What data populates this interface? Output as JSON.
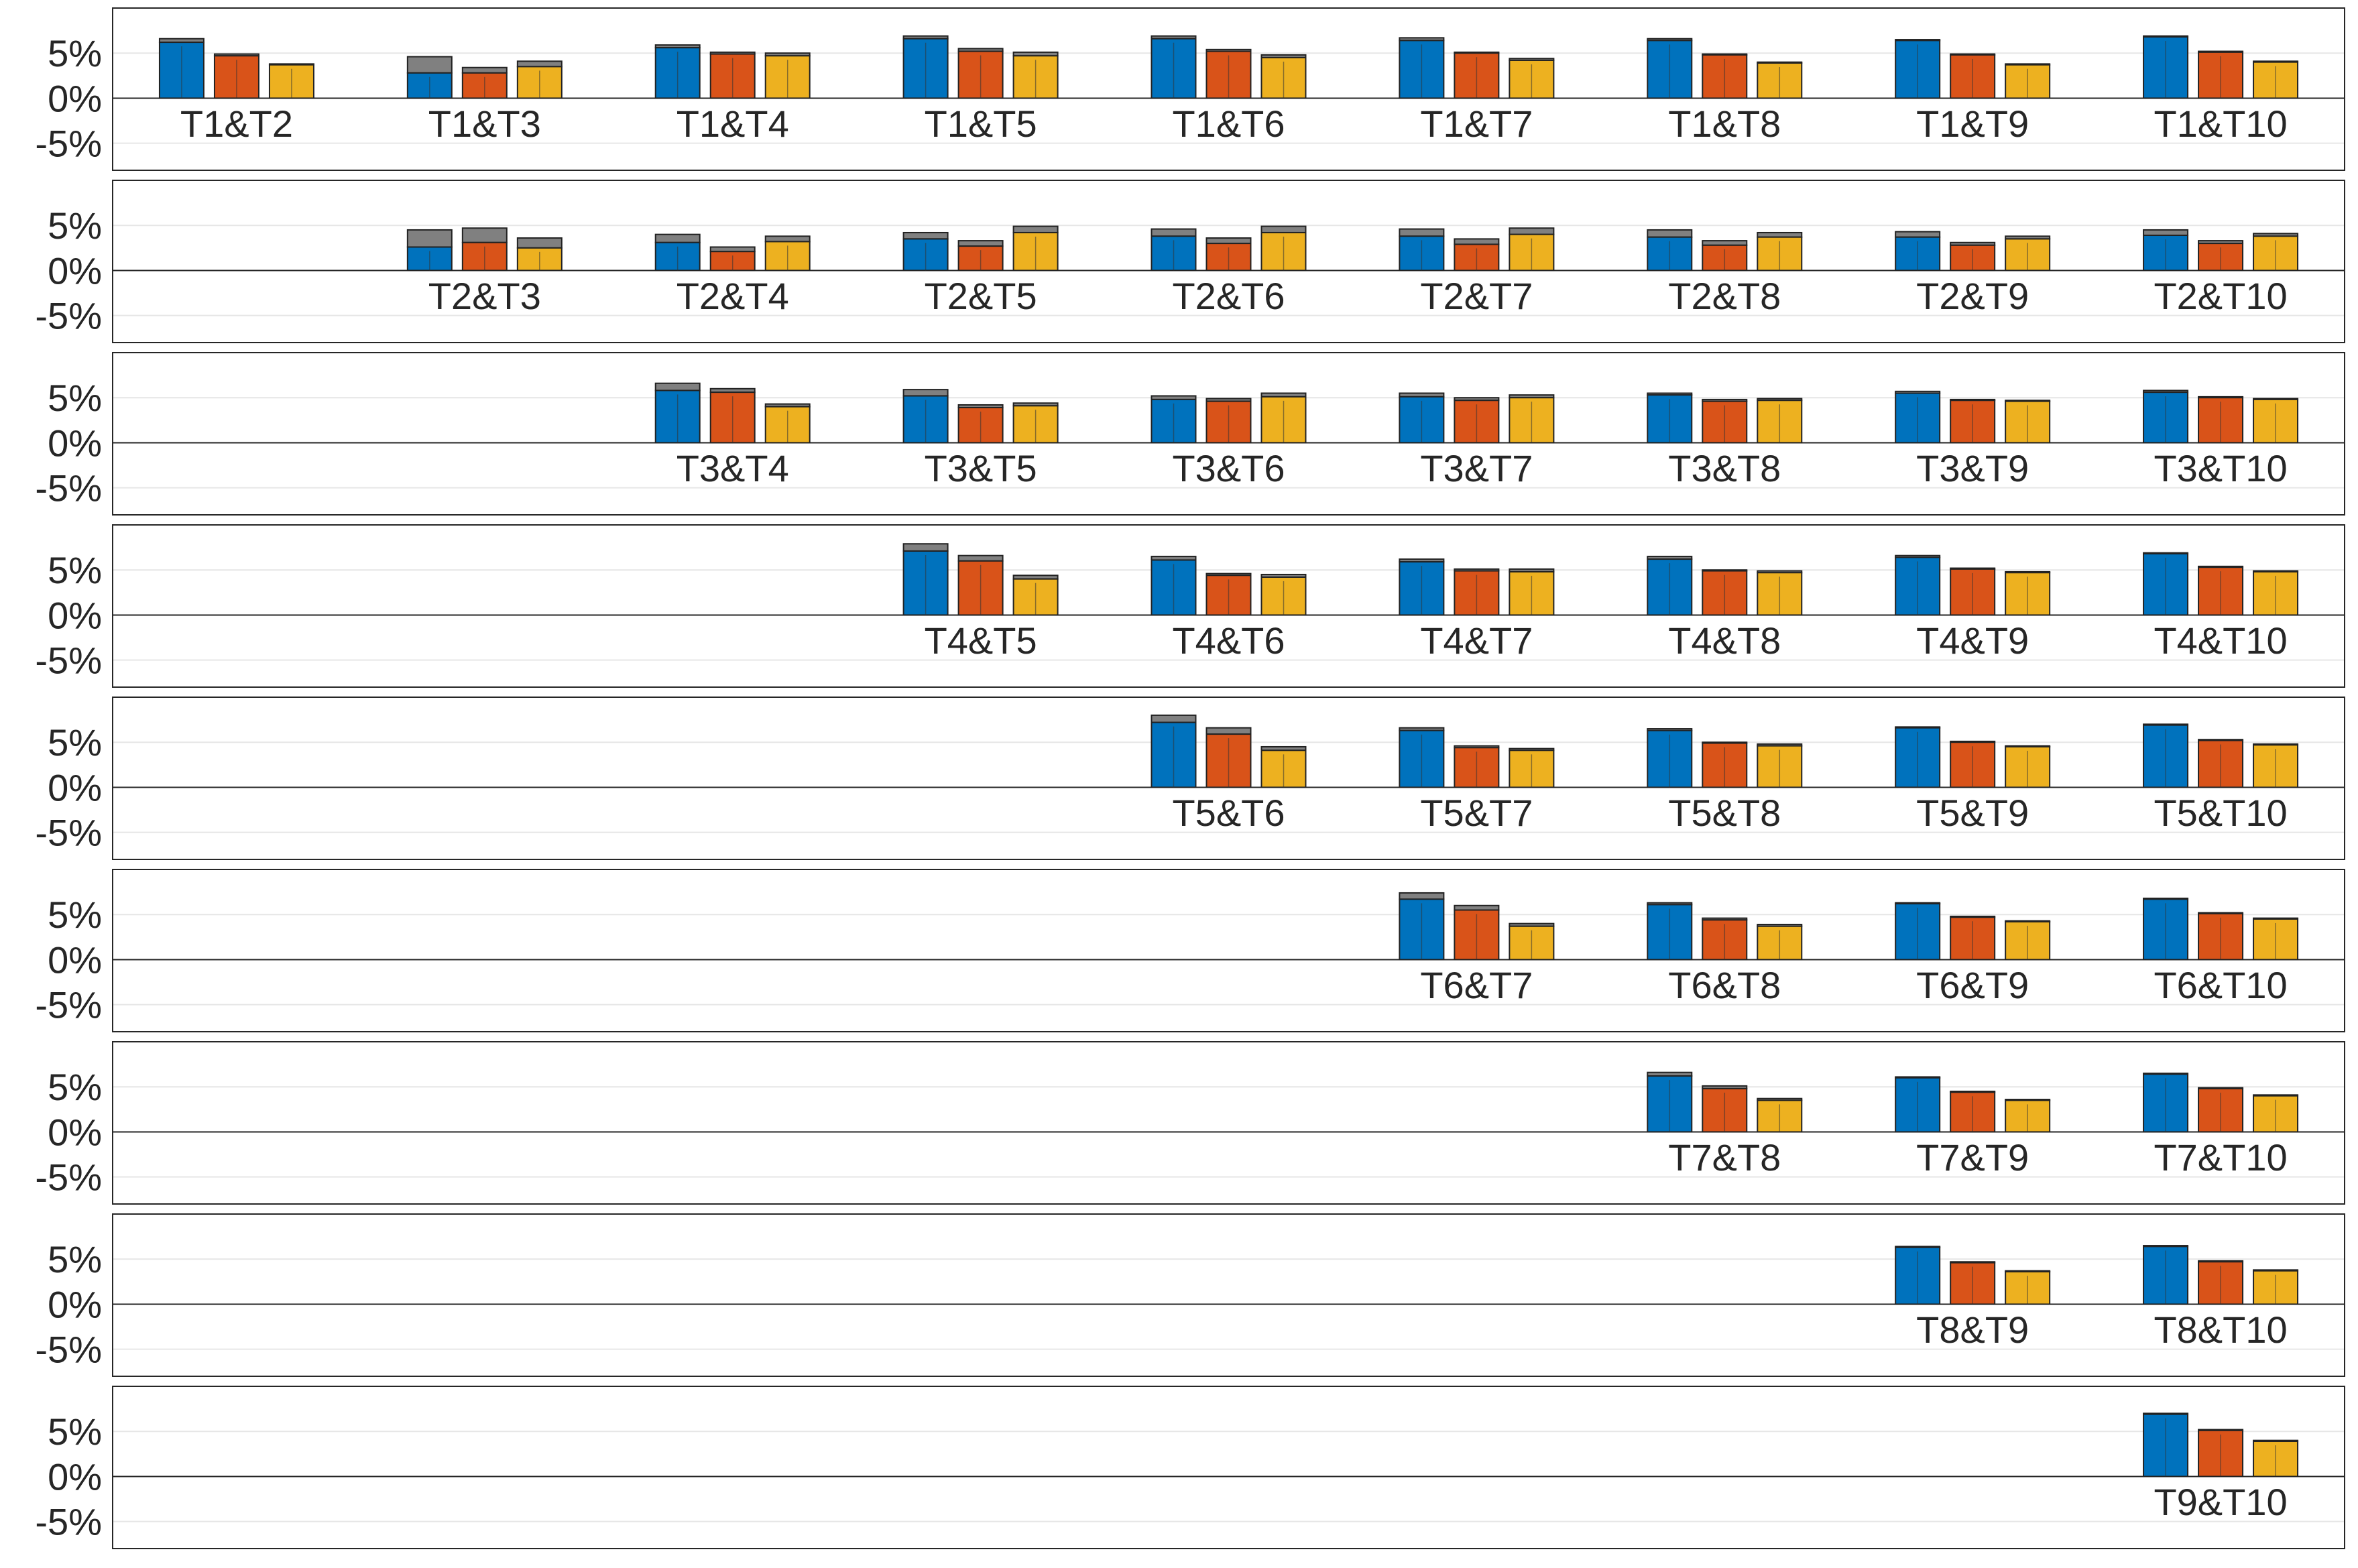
{
  "chart_data": {
    "type": "bar",
    "layout": "stacked-panels",
    "grid": true,
    "ylim": [
      -0.08,
      0.1
    ],
    "yticks": [
      {
        "value": 0.05,
        "label": "5%"
      },
      {
        "value": 0,
        "label": "0%"
      },
      {
        "value": -0.05,
        "label": "-5%"
      }
    ],
    "colors": {
      "series1": "#0072BD",
      "series2": "#D95319",
      "series3": "#EDB120",
      "extension": "#808080",
      "axis": "#262626",
      "grid": "#e6e6e6"
    },
    "columns": 9,
    "panels": [
      {
        "start_col": 0,
        "groups": [
          {
            "label": "T1&T2",
            "values": [
              0.062,
              0.047,
              0.037
            ],
            "ext": [
              0.004,
              0.002,
              0.001
            ]
          },
          {
            "label": "T1&T3",
            "values": [
              0.028,
              0.028,
              0.035
            ],
            "ext": [
              0.018,
              0.006,
              0.006
            ]
          },
          {
            "label": "T1&T4",
            "values": [
              0.056,
              0.049,
              0.047
            ],
            "ext": [
              0.003,
              0.002,
              0.003
            ]
          },
          {
            "label": "T1&T5",
            "values": [
              0.066,
              0.052,
              0.047
            ],
            "ext": [
              0.003,
              0.003,
              0.004
            ]
          },
          {
            "label": "T1&T6",
            "values": [
              0.066,
              0.052,
              0.045
            ],
            "ext": [
              0.003,
              0.002,
              0.003
            ]
          },
          {
            "label": "T1&T7",
            "values": [
              0.064,
              0.05,
              0.042
            ],
            "ext": [
              0.003,
              0.001,
              0.002
            ]
          },
          {
            "label": "T1&T8",
            "values": [
              0.064,
              0.048,
              0.039
            ],
            "ext": [
              0.002,
              0.001,
              0.001
            ]
          },
          {
            "label": "T1&T9",
            "values": [
              0.064,
              0.048,
              0.037
            ],
            "ext": [
              0.001,
              0.001,
              0.001
            ]
          },
          {
            "label": "T1&T10",
            "values": [
              0.068,
              0.051,
              0.04
            ],
            "ext": [
              0.001,
              0.001,
              0.001
            ]
          }
        ]
      },
      {
        "start_col": 1,
        "groups": [
          {
            "label": "T2&T3",
            "values": [
              0.026,
              0.031,
              0.025
            ],
            "ext": [
              0.019,
              0.016,
              0.011
            ]
          },
          {
            "label": "T2&T4",
            "values": [
              0.031,
              0.021,
              0.032
            ],
            "ext": [
              0.009,
              0.005,
              0.006
            ]
          },
          {
            "label": "T2&T5",
            "values": [
              0.035,
              0.027,
              0.042
            ],
            "ext": [
              0.007,
              0.006,
              0.007
            ]
          },
          {
            "label": "T2&T6",
            "values": [
              0.038,
              0.03,
              0.042
            ],
            "ext": [
              0.008,
              0.006,
              0.007
            ]
          },
          {
            "label": "T2&T7",
            "values": [
              0.038,
              0.029,
              0.04
            ],
            "ext": [
              0.008,
              0.006,
              0.007
            ]
          },
          {
            "label": "T2&T8",
            "values": [
              0.037,
              0.028,
              0.037
            ],
            "ext": [
              0.008,
              0.005,
              0.005
            ]
          },
          {
            "label": "T2&T9",
            "values": [
              0.037,
              0.028,
              0.035
            ],
            "ext": [
              0.006,
              0.003,
              0.003
            ]
          },
          {
            "label": "T2&T10",
            "values": [
              0.039,
              0.03,
              0.038
            ],
            "ext": [
              0.006,
              0.003,
              0.003
            ]
          }
        ]
      },
      {
        "start_col": 2,
        "groups": [
          {
            "label": "T3&T4",
            "values": [
              0.058,
              0.056,
              0.04
            ],
            "ext": [
              0.008,
              0.004,
              0.003
            ]
          },
          {
            "label": "T3&T5",
            "values": [
              0.052,
              0.039,
              0.041
            ],
            "ext": [
              0.007,
              0.003,
              0.003
            ]
          },
          {
            "label": "T3&T6",
            "values": [
              0.048,
              0.046,
              0.051
            ],
            "ext": [
              0.004,
              0.003,
              0.004
            ]
          },
          {
            "label": "T3&T7",
            "values": [
              0.051,
              0.047,
              0.05
            ],
            "ext": [
              0.004,
              0.003,
              0.003
            ]
          },
          {
            "label": "T3&T8",
            "values": [
              0.053,
              0.046,
              0.047
            ],
            "ext": [
              0.002,
              0.002,
              0.002
            ]
          },
          {
            "label": "T3&T9",
            "values": [
              0.055,
              0.047,
              0.046
            ],
            "ext": [
              0.002,
              0.001,
              0.001
            ]
          },
          {
            "label": "T3&T10",
            "values": [
              0.056,
              0.05,
              0.048
            ],
            "ext": [
              0.002,
              0.001,
              0.001
            ]
          }
        ]
      },
      {
        "start_col": 3,
        "groups": [
          {
            "label": "T4&T5",
            "values": [
              0.071,
              0.06,
              0.04
            ],
            "ext": [
              0.008,
              0.006,
              0.004
            ]
          },
          {
            "label": "T4&T6",
            "values": [
              0.061,
              0.044,
              0.042
            ],
            "ext": [
              0.004,
              0.002,
              0.003
            ]
          },
          {
            "label": "T4&T7",
            "values": [
              0.059,
              0.049,
              0.048
            ],
            "ext": [
              0.003,
              0.002,
              0.003
            ]
          },
          {
            "label": "T4&T8",
            "values": [
              0.062,
              0.049,
              0.047
            ],
            "ext": [
              0.003,
              0.001,
              0.002
            ]
          },
          {
            "label": "T4&T9",
            "values": [
              0.064,
              0.051,
              0.047
            ],
            "ext": [
              0.002,
              0.001,
              0.001
            ]
          },
          {
            "label": "T4&T10",
            "values": [
              0.068,
              0.053,
              0.048
            ],
            "ext": [
              0.001,
              0.001,
              0.001
            ]
          }
        ]
      },
      {
        "start_col": 4,
        "groups": [
          {
            "label": "T5&T6",
            "values": [
              0.072,
              0.059,
              0.041
            ],
            "ext": [
              0.008,
              0.007,
              0.004
            ]
          },
          {
            "label": "T5&T7",
            "values": [
              0.063,
              0.044,
              0.041
            ],
            "ext": [
              0.003,
              0.002,
              0.002
            ]
          },
          {
            "label": "T5&T8",
            "values": [
              0.063,
              0.049,
              0.046
            ],
            "ext": [
              0.002,
              0.001,
              0.002
            ]
          },
          {
            "label": "T5&T9",
            "values": [
              0.066,
              0.05,
              0.045
            ],
            "ext": [
              0.001,
              0.001,
              0.001
            ]
          },
          {
            "label": "T5&T10",
            "values": [
              0.069,
              0.052,
              0.047
            ],
            "ext": [
              0.001,
              0.001,
              0.001
            ]
          }
        ]
      },
      {
        "start_col": 5,
        "groups": [
          {
            "label": "T6&T7",
            "values": [
              0.067,
              0.055,
              0.037
            ],
            "ext": [
              0.007,
              0.005,
              0.003
            ]
          },
          {
            "label": "T6&T8",
            "values": [
              0.061,
              0.044,
              0.037
            ],
            "ext": [
              0.002,
              0.002,
              0.002
            ]
          },
          {
            "label": "T6&T9",
            "values": [
              0.062,
              0.047,
              0.042
            ],
            "ext": [
              0.001,
              0.001,
              0.001
            ]
          },
          {
            "label": "T6&T10",
            "values": [
              0.067,
              0.051,
              0.045
            ],
            "ext": [
              0.001,
              0.001,
              0.001
            ]
          }
        ]
      },
      {
        "start_col": 6,
        "groups": [
          {
            "label": "T7&T8",
            "values": [
              0.062,
              0.048,
              0.035
            ],
            "ext": [
              0.004,
              0.003,
              0.002
            ]
          },
          {
            "label": "T7&T9",
            "values": [
              0.06,
              0.044,
              0.035
            ],
            "ext": [
              0.001,
              0.001,
              0.001
            ]
          },
          {
            "label": "T7&T10",
            "values": [
              0.064,
              0.048,
              0.04
            ],
            "ext": [
              0.001,
              0.001,
              0.001
            ]
          }
        ]
      },
      {
        "start_col": 7,
        "groups": [
          {
            "label": "T8&T9",
            "values": [
              0.063,
              0.046,
              0.036
            ],
            "ext": [
              0.001,
              0.001,
              0.001
            ]
          },
          {
            "label": "T8&T10",
            "values": [
              0.064,
              0.047,
              0.037
            ],
            "ext": [
              0.001,
              0.001,
              0.001
            ]
          }
        ]
      },
      {
        "start_col": 8,
        "groups": [
          {
            "label": "T9&T10",
            "values": [
              0.069,
              0.051,
              0.039
            ],
            "ext": [
              0.001,
              0.001,
              0.001
            ]
          }
        ]
      }
    ]
  }
}
